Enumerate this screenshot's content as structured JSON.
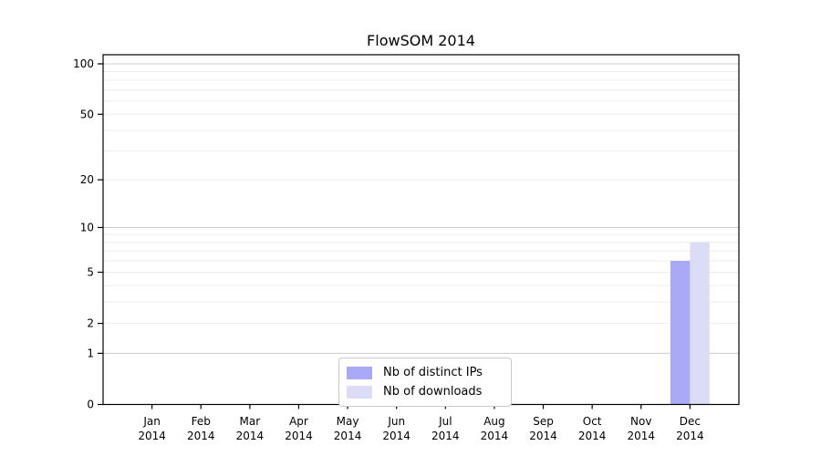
{
  "chart_data": {
    "type": "bar",
    "title": "FlowSOM 2014",
    "categories": [
      "Jan",
      "Feb",
      "Mar",
      "Apr",
      "May",
      "Jun",
      "Jul",
      "Aug",
      "Sep",
      "Oct",
      "Nov",
      "Dec"
    ],
    "category_year": "2014",
    "series": [
      {
        "name": "Nb of distinct IPs",
        "color": "#a9a9f7",
        "values": [
          0,
          0,
          0,
          0,
          0,
          0,
          0,
          0,
          0,
          0,
          0,
          6
        ]
      },
      {
        "name": "Nb of downloads",
        "color": "#dcdcf7",
        "values": [
          0,
          0,
          0,
          0,
          0,
          0,
          0,
          0,
          0,
          0,
          0,
          8
        ]
      }
    ],
    "yscale": "log1p",
    "yticks": [
      0,
      1,
      2,
      5,
      10,
      20,
      50,
      100
    ],
    "ylim": [
      0,
      100
    ],
    "grid": true,
    "legend_position": "bottom-center",
    "colors": {
      "grid_major": "#cccccc",
      "grid_minor": "#ededed",
      "axis": "#000000"
    }
  }
}
